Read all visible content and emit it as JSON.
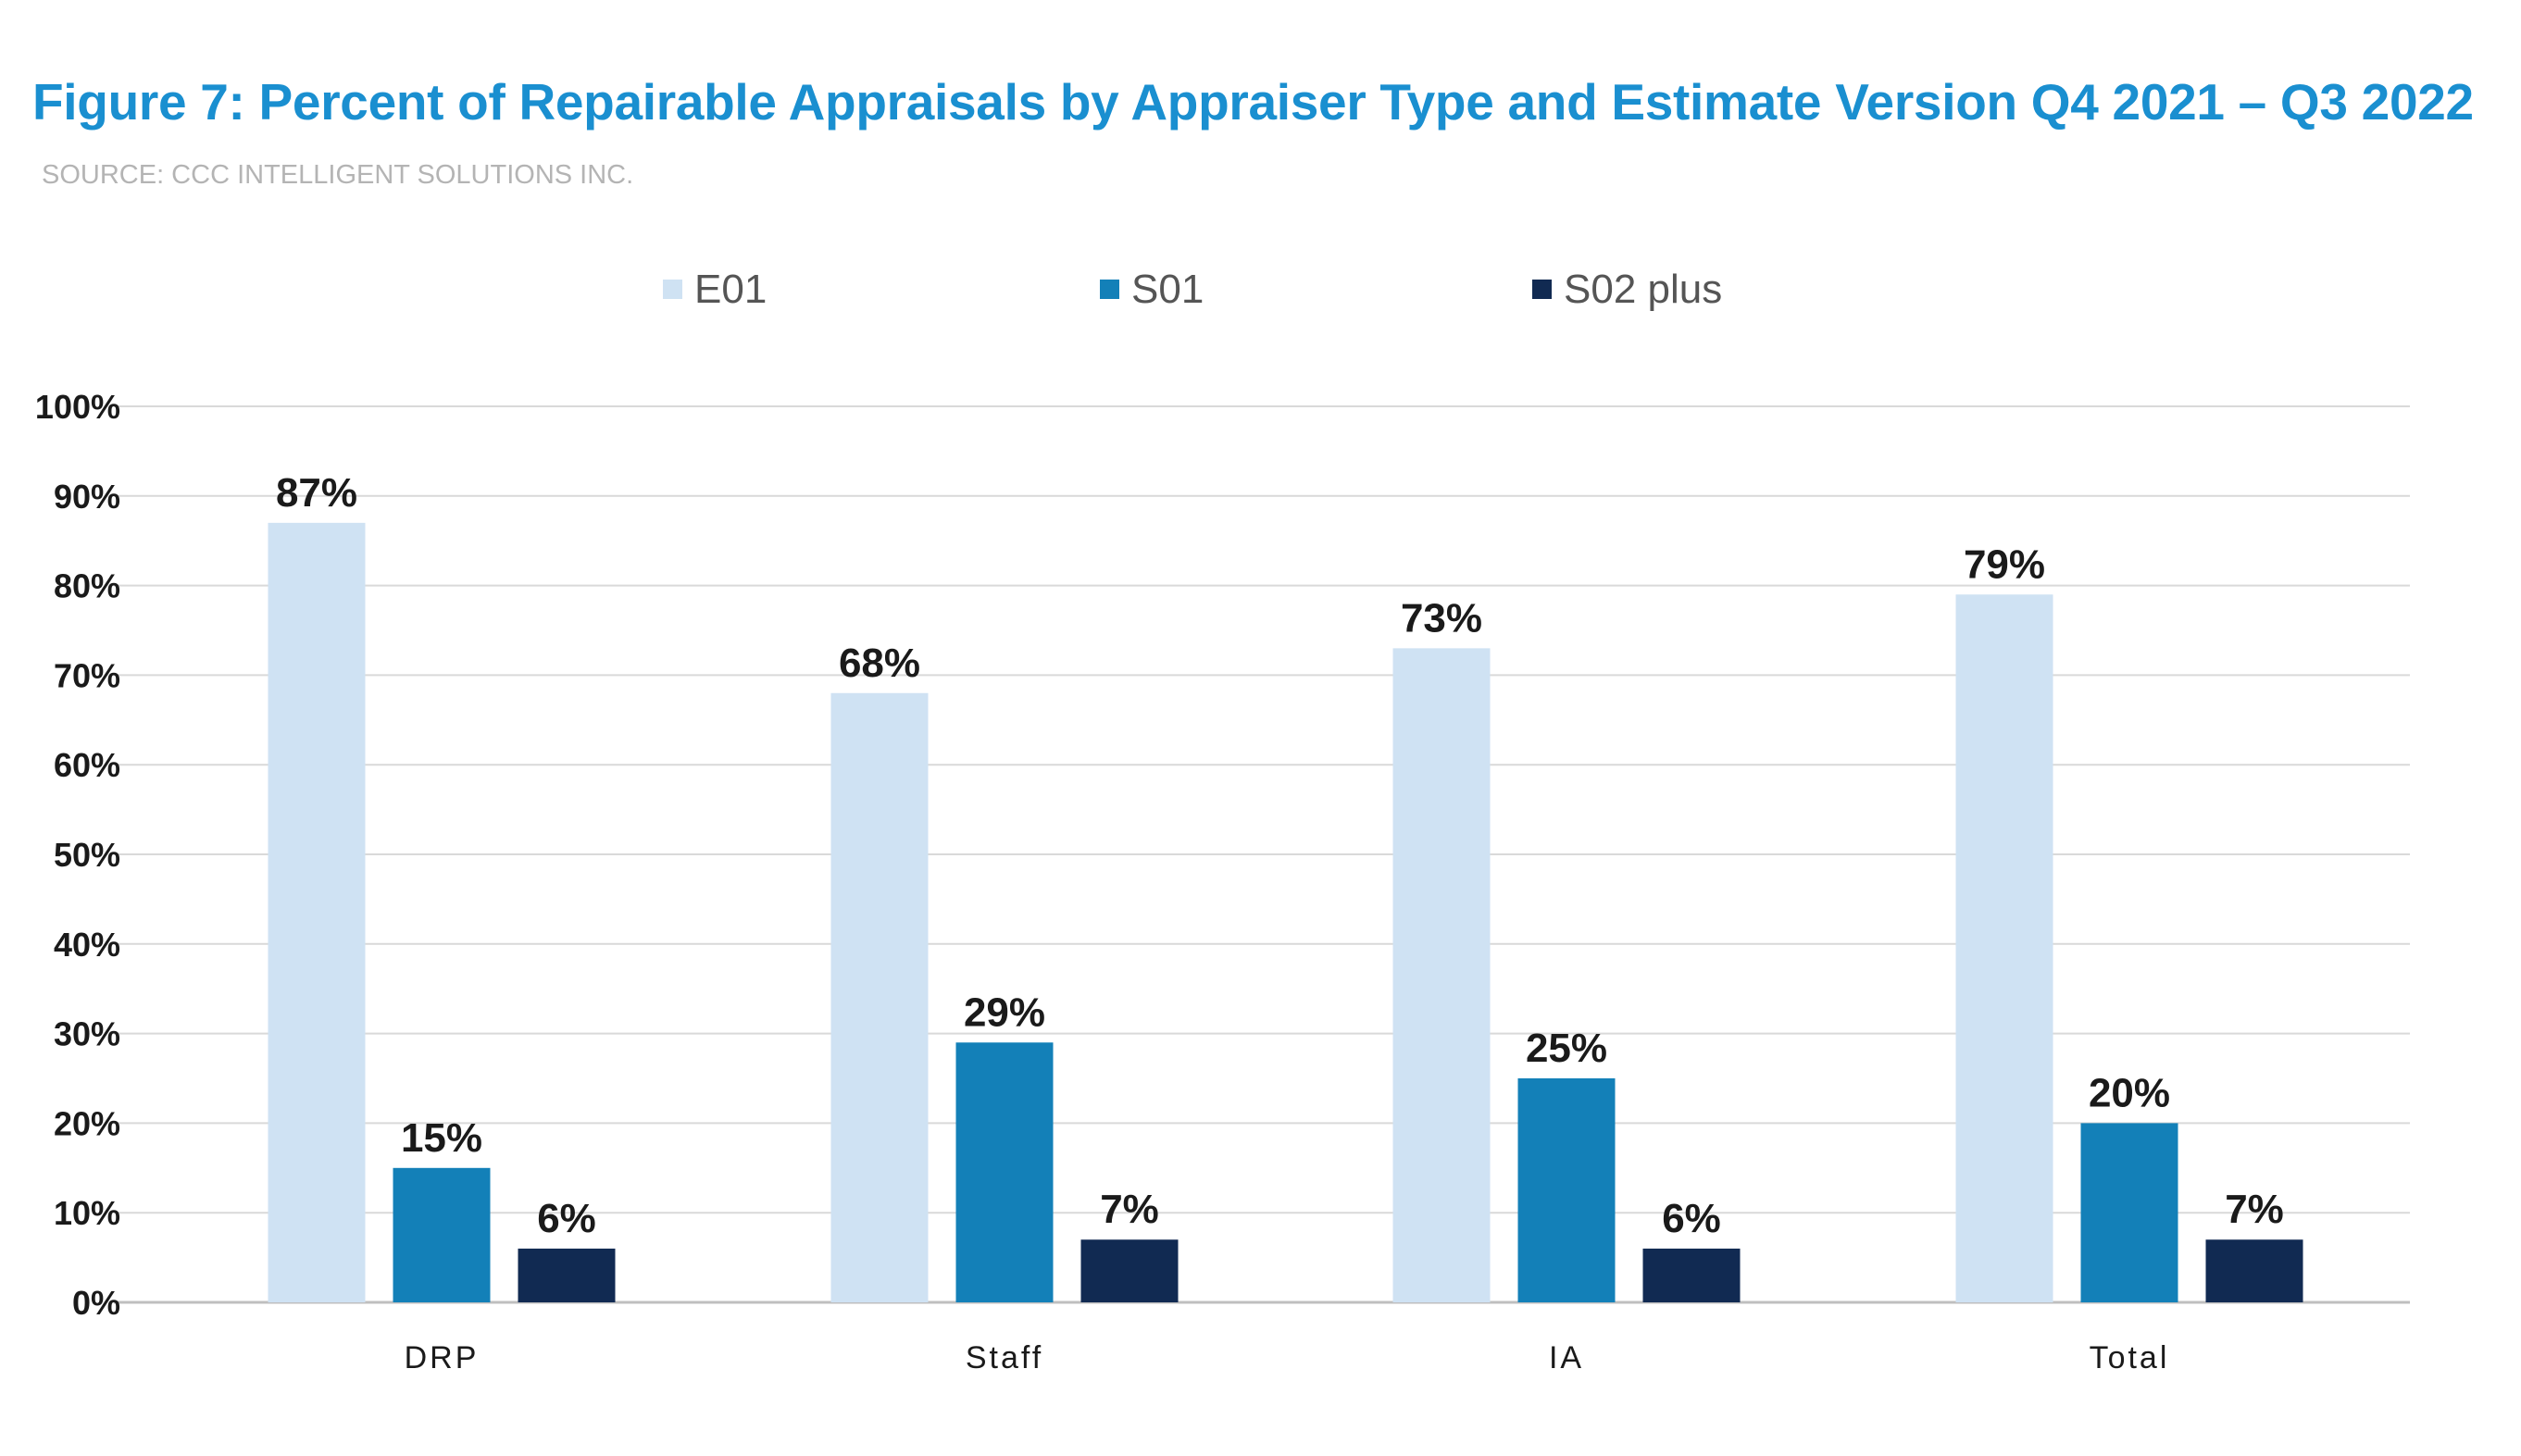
{
  "title": "Figure 7: Percent of Repairable Appraisals by Appraiser Type and Estimate Version Q4 2021 – Q3 2022",
  "source": "SOURCE: CCC INTELLIGENT SOLUTIONS INC.",
  "colors": {
    "title": "#1a8fd0",
    "gridline": "#d9d9d9",
    "axis": "#bfbfbf"
  },
  "chart_data": {
    "type": "bar",
    "categories": [
      "DRP",
      "Staff",
      "IA",
      "Total"
    ],
    "series": [
      {
        "name": "E01",
        "color": "#cfe2f3",
        "values": [
          87,
          68,
          73,
          79
        ],
        "labels": [
          "87%",
          "68%",
          "73%",
          "79%"
        ]
      },
      {
        "name": "S01",
        "color": "#1380b8",
        "values": [
          15,
          29,
          25,
          20
        ],
        "labels": [
          "15%",
          "29%",
          "25%",
          "20%"
        ]
      },
      {
        "name": "S02 plus",
        "color": "#112a52",
        "values": [
          6,
          7,
          6,
          7
        ],
        "labels": [
          "6%",
          "7%",
          "6%",
          "7%"
        ]
      }
    ],
    "ylim": [
      0,
      100
    ],
    "yticks": [
      "0%",
      "10%",
      "20%",
      "30%",
      "40%",
      "50%",
      "60%",
      "70%",
      "80%",
      "90%",
      "100%"
    ],
    "grid": true,
    "legend_position": "top"
  }
}
